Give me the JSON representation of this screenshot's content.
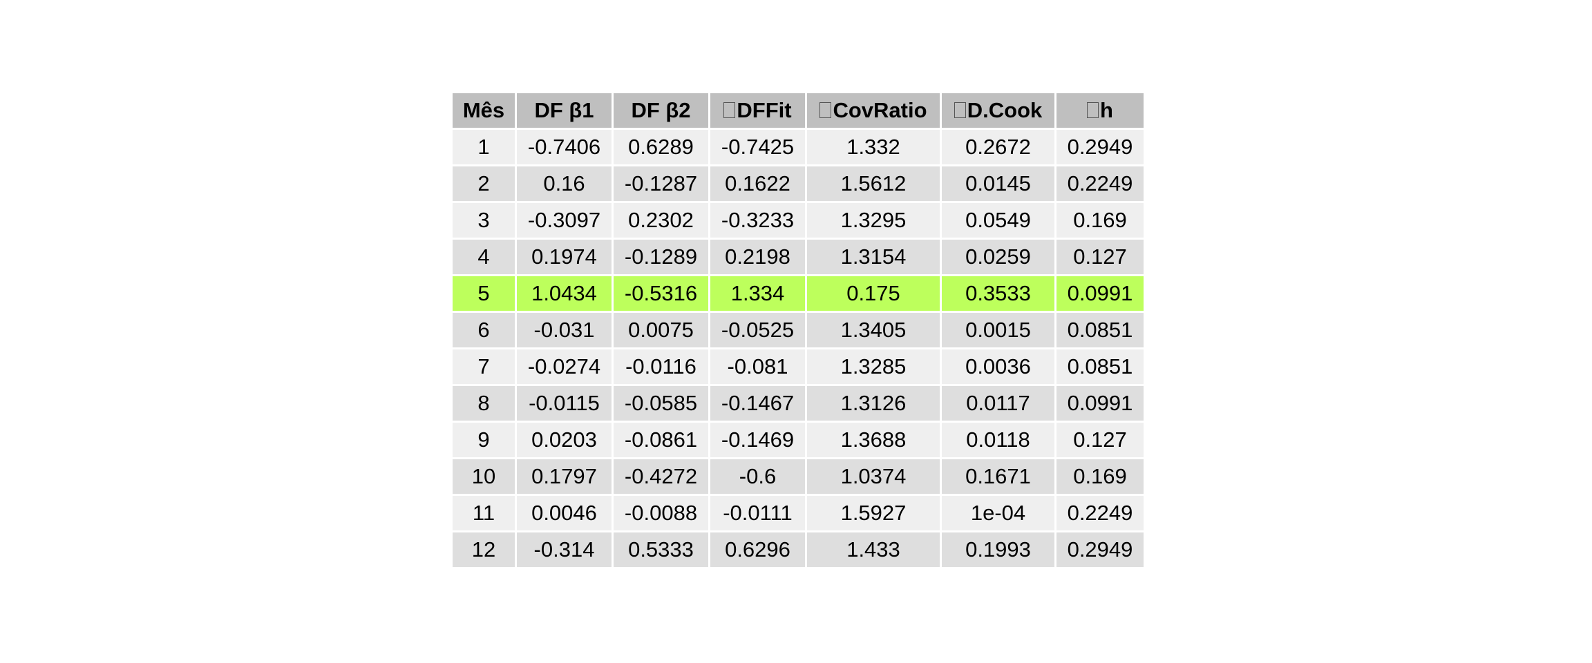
{
  "colors": {
    "header_bg": "#bfbfbf",
    "row_light": "#efefef",
    "row_dark": "#dedede",
    "highlight": "#bdff5c"
  },
  "chart_data": {
    "type": "table",
    "highlight_row": 4,
    "columns": [
      {
        "label": "Mês",
        "prefix_box": false
      },
      {
        "label": "DF β1",
        "prefix_box": false
      },
      {
        "label": "DF β2",
        "prefix_box": false
      },
      {
        "label": "DFFit",
        "prefix_box": true
      },
      {
        "label": "CovRatio",
        "prefix_box": true
      },
      {
        "label": "D.Cook",
        "prefix_box": true
      },
      {
        "label": "h",
        "prefix_box": true
      }
    ],
    "rows": [
      [
        "1",
        "-0.7406",
        "0.6289",
        "-0.7425",
        "1.332",
        "0.2672",
        "0.2949"
      ],
      [
        "2",
        "0.16",
        "-0.1287",
        "0.1622",
        "1.5612",
        "0.0145",
        "0.2249"
      ],
      [
        "3",
        "-0.3097",
        "0.2302",
        "-0.3233",
        "1.3295",
        "0.0549",
        "0.169"
      ],
      [
        "4",
        "0.1974",
        "-0.1289",
        "0.2198",
        "1.3154",
        "0.0259",
        "0.127"
      ],
      [
        "5",
        "1.0434",
        "-0.5316",
        "1.334",
        "0.175",
        "0.3533",
        "0.0991"
      ],
      [
        "6",
        "-0.031",
        "0.0075",
        "-0.0525",
        "1.3405",
        "0.0015",
        "0.0851"
      ],
      [
        "7",
        "-0.0274",
        "-0.0116",
        "-0.081",
        "1.3285",
        "0.0036",
        "0.0851"
      ],
      [
        "8",
        "-0.0115",
        "-0.0585",
        "-0.1467",
        "1.3126",
        "0.0117",
        "0.0991"
      ],
      [
        "9",
        "0.0203",
        "-0.0861",
        "-0.1469",
        "1.3688",
        "0.0118",
        "0.127"
      ],
      [
        "10",
        "0.1797",
        "-0.4272",
        "-0.6",
        "1.0374",
        "0.1671",
        "0.169"
      ],
      [
        "11",
        "0.0046",
        "-0.0088",
        "-0.0111",
        "1.5927",
        "1e-04",
        "0.2249"
      ],
      [
        "12",
        "-0.314",
        "0.5333",
        "0.6296",
        "1.433",
        "0.1993",
        "0.2949"
      ]
    ]
  }
}
